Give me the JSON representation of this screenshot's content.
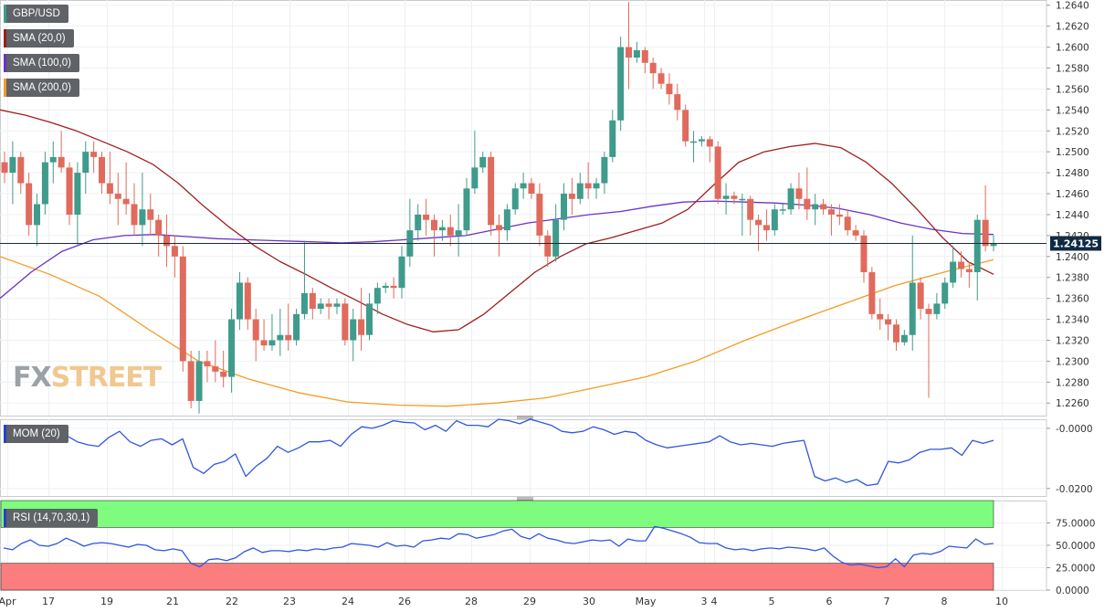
{
  "watermark": {
    "part1": "FX",
    "part2": "STREET"
  },
  "legends": {
    "pair": {
      "label": "GBP/USD",
      "color": "#3f9b8b"
    },
    "sma20": {
      "label": "SMA (20,0)",
      "color": "#a11d1d"
    },
    "sma100": {
      "label": "SMA (100,0)",
      "color": "#6a32c9"
    },
    "sma200": {
      "label": "SMA (200,0)",
      "color": "#f39c22"
    },
    "mom": {
      "label": "MOM (20)",
      "color": "#2241c8"
    },
    "rsi": {
      "label": "RSI (14,70,30,1)",
      "color": "#2241c8"
    }
  },
  "colors": {
    "up": "#3f9b8b",
    "down": "#e06a5c",
    "rsi_overbought": "#7dfc7d",
    "rsi_oversold": "#fb7d7d",
    "mom_line": "#2f56e0",
    "rsi_line": "#2f56e0"
  },
  "current_price_label": "1.24125",
  "chart_data": [
    {
      "type": "candlestick",
      "title": "GBP/USD",
      "x_labels": [
        "Apr",
        "17",
        "19",
        "21",
        "22",
        "23",
        "24",
        "26",
        "28",
        "29",
        "30",
        "May",
        "3",
        "4",
        "5",
        "6",
        "7",
        "8",
        "10"
      ],
      "y_ticks": [
        "1.2640",
        "1.2620",
        "1.2600",
        "1.2580",
        "1.2560",
        "1.2540",
        "1.2520",
        "1.2500",
        "1.2480",
        "1.2460",
        "1.2440",
        "1.2420",
        "1.2400",
        "1.2380",
        "1.2360",
        "1.2340",
        "1.2320",
        "1.2300",
        "1.2280",
        "1.2260"
      ],
      "ylim": [
        1.2248,
        1.2645
      ],
      "current_price": 1.24125,
      "candles": [
        [
          1.249,
          1.25,
          1.247,
          1.248
        ],
        [
          1.248,
          1.251,
          1.245,
          1.2495
        ],
        [
          1.2495,
          1.25,
          1.246,
          1.247
        ],
        [
          1.247,
          1.248,
          1.242,
          1.243
        ],
        [
          1.243,
          1.246,
          1.241,
          1.245
        ],
        [
          1.245,
          1.25,
          1.244,
          1.249
        ],
        [
          1.249,
          1.251,
          1.247,
          1.2495
        ],
        [
          1.2495,
          1.252,
          1.248,
          1.2485
        ],
        [
          1.2485,
          1.249,
          1.243,
          1.244
        ],
        [
          1.244,
          1.249,
          1.241,
          1.248
        ],
        [
          1.248,
          1.251,
          1.246,
          1.25
        ],
        [
          1.25,
          1.251,
          1.248,
          1.2495
        ],
        [
          1.2495,
          1.25,
          1.246,
          1.247
        ],
        [
          1.247,
          1.25,
          1.245,
          1.246
        ],
        [
          1.246,
          1.248,
          1.243,
          1.2455
        ],
        [
          1.2455,
          1.249,
          1.244,
          1.245
        ],
        [
          1.245,
          1.247,
          1.242,
          1.243
        ],
        [
          1.243,
          1.248,
          1.241,
          1.2445
        ],
        [
          1.2445,
          1.246,
          1.242,
          1.2435
        ],
        [
          1.2435,
          1.244,
          1.24,
          1.242
        ],
        [
          1.242,
          1.244,
          1.239,
          1.241
        ],
        [
          1.241,
          1.242,
          1.238,
          1.24
        ],
        [
          1.24,
          1.241,
          1.229,
          1.23
        ],
        [
          1.23,
          1.231,
          1.2255,
          1.2262
        ],
        [
          1.2262,
          1.231,
          1.225,
          1.23
        ],
        [
          1.23,
          1.231,
          1.228,
          1.2295
        ],
        [
          1.2295,
          1.232,
          1.228,
          1.229
        ],
        [
          1.229,
          1.231,
          1.2275,
          1.2285
        ],
        [
          1.2285,
          1.235,
          1.227,
          1.234
        ],
        [
          1.234,
          1.2385,
          1.233,
          1.2375
        ],
        [
          1.2375,
          1.238,
          1.233,
          1.234
        ],
        [
          1.234,
          1.235,
          1.23,
          1.232
        ],
        [
          1.232,
          1.234,
          1.231,
          1.2315
        ],
        [
          1.2315,
          1.2345,
          1.231,
          1.232
        ],
        [
          1.232,
          1.235,
          1.2305,
          1.2325
        ],
        [
          1.2325,
          1.2355,
          1.231,
          1.232
        ],
        [
          1.232,
          1.235,
          1.2315,
          1.2345
        ],
        [
          1.2345,
          1.2415,
          1.234,
          1.2365
        ],
        [
          1.2365,
          1.237,
          1.234,
          1.235
        ],
        [
          1.235,
          1.236,
          1.2345,
          1.2355
        ],
        [
          1.2355,
          1.236,
          1.234,
          1.2352
        ],
        [
          1.2352,
          1.236,
          1.2345,
          1.2355
        ],
        [
          1.2355,
          1.236,
          1.2315,
          1.232
        ],
        [
          1.232,
          1.235,
          1.23,
          1.234
        ],
        [
          1.234,
          1.237,
          1.231,
          1.2325
        ],
        [
          1.2325,
          1.2365,
          1.232,
          1.2355
        ],
        [
          1.2355,
          1.2375,
          1.2345,
          1.237
        ],
        [
          1.237,
          1.2375,
          1.2365,
          1.2372
        ],
        [
          1.2372,
          1.238,
          1.236,
          1.237
        ],
        [
          1.237,
          1.241,
          1.236,
          1.24
        ],
        [
          1.24,
          1.2455,
          1.239,
          1.2425
        ],
        [
          1.2425,
          1.245,
          1.2415,
          1.244
        ],
        [
          1.244,
          1.2455,
          1.242,
          1.2435
        ],
        [
          1.2435,
          1.244,
          1.24,
          1.2425
        ],
        [
          1.2425,
          1.2435,
          1.2415,
          1.2428
        ],
        [
          1.2428,
          1.244,
          1.241,
          1.242
        ],
        [
          1.242,
          1.245,
          1.24,
          1.2425
        ],
        [
          1.2425,
          1.2475,
          1.242,
          1.2465
        ],
        [
          1.2465,
          1.252,
          1.246,
          1.2485
        ],
        [
          1.2485,
          1.25,
          1.248,
          1.2495
        ],
        [
          1.2495,
          1.25,
          1.242,
          1.243
        ],
        [
          1.243,
          1.244,
          1.24,
          1.2425
        ],
        [
          1.2425,
          1.245,
          1.2415,
          1.2445
        ],
        [
          1.2445,
          1.247,
          1.244,
          1.2465
        ],
        [
          1.2465,
          1.248,
          1.2455,
          1.247
        ],
        [
          1.247,
          1.2475,
          1.2455,
          1.246
        ],
        [
          1.246,
          1.247,
          1.241,
          1.242
        ],
        [
          1.242,
          1.2425,
          1.239,
          1.24
        ],
        [
          1.24,
          1.245,
          1.2395,
          1.2435
        ],
        [
          1.2435,
          1.247,
          1.2425,
          1.246
        ],
        [
          1.246,
          1.2475,
          1.244,
          1.2455
        ],
        [
          1.2455,
          1.248,
          1.245,
          1.247
        ],
        [
          1.247,
          1.249,
          1.2455,
          1.2465
        ],
        [
          1.2465,
          1.2475,
          1.2455,
          1.247
        ],
        [
          1.247,
          1.25,
          1.246,
          1.2495
        ],
        [
          1.2495,
          1.254,
          1.249,
          1.253
        ],
        [
          1.253,
          1.261,
          1.252,
          1.26
        ],
        [
          1.26,
          1.2643,
          1.256,
          1.259
        ],
        [
          1.259,
          1.2605,
          1.2585,
          1.2597
        ],
        [
          1.2597,
          1.26,
          1.2575,
          1.2585
        ],
        [
          1.2585,
          1.259,
          1.256,
          1.2575
        ],
        [
          1.2575,
          1.258,
          1.256,
          1.2565
        ],
        [
          1.2565,
          1.2575,
          1.2545,
          1.2555
        ],
        [
          1.2555,
          1.2565,
          1.253,
          1.254
        ],
        [
          1.254,
          1.2545,
          1.2505,
          1.251
        ],
        [
          1.251,
          1.252,
          1.249,
          1.251
        ],
        [
          1.251,
          1.2515,
          1.2505,
          1.2512
        ],
        [
          1.2512,
          1.2515,
          1.249,
          1.2505
        ],
        [
          1.2505,
          1.251,
          1.245,
          1.2455
        ],
        [
          1.2455,
          1.247,
          1.244,
          1.2458
        ],
        [
          1.2458,
          1.2462,
          1.245,
          1.2455
        ],
        [
          1.2455,
          1.246,
          1.242,
          1.2455
        ],
        [
          1.2455,
          1.2458,
          1.242,
          1.2435
        ],
        [
          1.2435,
          1.244,
          1.2405,
          1.243
        ],
        [
          1.243,
          1.2445,
          1.2415,
          1.2425
        ],
        [
          1.2425,
          1.245,
          1.242,
          1.2445
        ],
        [
          1.2445,
          1.245,
          1.244,
          1.2445
        ],
        [
          1.2445,
          1.247,
          1.244,
          1.2465
        ],
        [
          1.2465,
          1.248,
          1.2445,
          1.2455
        ],
        [
          1.2455,
          1.2485,
          1.2435,
          1.2445
        ],
        [
          1.2445,
          1.246,
          1.243,
          1.245
        ],
        [
          1.245,
          1.2455,
          1.244,
          1.2445
        ],
        [
          1.2445,
          1.245,
          1.242,
          1.244
        ],
        [
          1.244,
          1.245,
          1.243,
          1.2438
        ],
        [
          1.2438,
          1.2445,
          1.242,
          1.2425
        ],
        [
          1.2425,
          1.243,
          1.2415,
          1.242
        ],
        [
          1.242,
          1.2425,
          1.2375,
          1.2385
        ],
        [
          1.2385,
          1.239,
          1.234,
          1.2345
        ],
        [
          1.2345,
          1.236,
          1.233,
          1.234
        ],
        [
          1.234,
          1.2345,
          1.232,
          1.2335
        ],
        [
          1.2335,
          1.234,
          1.231,
          1.2318
        ],
        [
          1.2318,
          1.233,
          1.2315,
          1.2325
        ],
        [
          1.2325,
          1.242,
          1.231,
          1.2375
        ],
        [
          1.2375,
          1.238,
          1.234,
          1.235
        ],
        [
          1.235,
          1.2355,
          1.2265,
          1.2345
        ],
        [
          1.2345,
          1.2365,
          1.234,
          1.2355
        ],
        [
          1.2355,
          1.238,
          1.235,
          1.2375
        ],
        [
          1.2375,
          1.241,
          1.237,
          1.2395
        ],
        [
          1.2395,
          1.2405,
          1.238,
          1.2388
        ],
        [
          1.2388,
          1.2395,
          1.237,
          1.2385
        ],
        [
          1.2385,
          1.244,
          1.2358,
          1.2435
        ],
        [
          1.2435,
          1.2468,
          1.2405,
          1.241
        ],
        [
          1.241,
          1.242,
          1.2405,
          1.24125
        ]
      ],
      "sma20": [
        1.254,
        1.2535,
        1.2528,
        1.252,
        1.251,
        1.25,
        1.2488,
        1.247,
        1.2448,
        1.2428,
        1.241,
        1.2395,
        1.2383,
        1.237,
        1.2358,
        1.2345,
        1.2335,
        1.2328,
        1.233,
        1.2345,
        1.2365,
        1.2385,
        1.24,
        1.2412,
        1.2418,
        1.2425,
        1.2432,
        1.2445,
        1.2468,
        1.249,
        1.25,
        1.2505,
        1.2508,
        1.2504,
        1.249,
        1.247,
        1.2445,
        1.2418,
        1.2395,
        1.2383
      ],
      "sma100": [
        1.236,
        1.2385,
        1.2405,
        1.2416,
        1.242,
        1.2421,
        1.2419,
        1.2417,
        1.2416,
        1.2415,
        1.2414,
        1.2413,
        1.2414,
        1.2416,
        1.2418,
        1.242,
        1.2426,
        1.2432,
        1.2436,
        1.244,
        1.2443,
        1.2448,
        1.2452,
        1.2453,
        1.2452,
        1.2451,
        1.2449,
        1.2446,
        1.244,
        1.2432,
        1.2426,
        1.2422,
        1.2421
      ],
      "sma200": [
        1.24,
        1.2383,
        1.2362,
        1.233,
        1.23,
        1.2283,
        1.227,
        1.2261,
        1.2258,
        1.2257,
        1.226,
        1.2265,
        1.2275,
        1.2285,
        1.23,
        1.232,
        1.2338,
        1.2355,
        1.2372,
        1.2385,
        1.2397
      ]
    },
    {
      "type": "line",
      "title": "MOM (20)",
      "y_ticks": [
        "-0.0000",
        "-0.0200"
      ],
      "ylim": [
        -0.0225,
        0.003
      ],
      "values": [
        -0.001,
        -0.003,
        -0.0005,
        -0.0002,
        -0.0015,
        -0.002,
        -0.0025,
        -0.0045,
        -0.0055,
        -0.006,
        -0.003,
        -0.001,
        -0.0045,
        -0.006,
        -0.004,
        -0.0035,
        -0.0055,
        -0.0035,
        -0.013,
        -0.015,
        -0.012,
        -0.011,
        -0.0085,
        -0.016,
        -0.0125,
        -0.01,
        -0.006,
        -0.008,
        -0.0065,
        -0.0045,
        -0.0045,
        -0.004,
        -0.006,
        -0.002,
        0.0005,
        0.0,
        0.001,
        0.0025,
        0.002,
        0.0018,
        -0.0005,
        0.001,
        -0.001,
        0.0025,
        0.001,
        0.001,
        0.0005,
        0.003,
        0.0025,
        0.0015,
        0.003,
        0.002,
        0.001,
        -0.001,
        -0.0015,
        -0.001,
        0.0005,
        -0.0005,
        -0.002,
        -0.001,
        -0.0015,
        -0.004,
        -0.0055,
        -0.0065,
        -0.006,
        -0.0055,
        -0.005,
        -0.0045,
        -0.0025,
        -0.0045,
        -0.0055,
        -0.005,
        -0.0055,
        -0.006,
        -0.005,
        -0.0045,
        -0.004,
        -0.016,
        -0.0175,
        -0.0165,
        -0.018,
        -0.017,
        -0.019,
        -0.0185,
        -0.011,
        -0.0115,
        -0.0105,
        -0.008,
        -0.007,
        -0.007,
        -0.0065,
        -0.009,
        -0.004,
        -0.005,
        -0.004
      ]
    },
    {
      "type": "line",
      "title": "RSI (14,70,30,1)",
      "y_ticks": [
        "75.0000",
        "50.0000",
        "25.0000",
        "0.0000"
      ],
      "ylim": [
        0,
        100
      ],
      "overbought": 70,
      "oversold": 30,
      "values": [
        47,
        45,
        52,
        56,
        50,
        49,
        52,
        58,
        54,
        49,
        52,
        53,
        52,
        50,
        48,
        51,
        50,
        45,
        44,
        46,
        44,
        30,
        26,
        34,
        35,
        33,
        36,
        43,
        47,
        42,
        44,
        44,
        43,
        45,
        44,
        46,
        45,
        47,
        48,
        52,
        51,
        50,
        48,
        53,
        49,
        50,
        48,
        55,
        56,
        58,
        57,
        63,
        62,
        58,
        60,
        62,
        66,
        68,
        60,
        57,
        63,
        58,
        56,
        53,
        52,
        54,
        56,
        55,
        56,
        49,
        57,
        55,
        55,
        71,
        69,
        66,
        63,
        59,
        53,
        52,
        52,
        47,
        45,
        46,
        44,
        46,
        47,
        46,
        48,
        47,
        46,
        44,
        47,
        38,
        31,
        28,
        29,
        27,
        25,
        26,
        35,
        26,
        39,
        41,
        40,
        43,
        49,
        48,
        47,
        57,
        51,
        52
      ]
    }
  ]
}
